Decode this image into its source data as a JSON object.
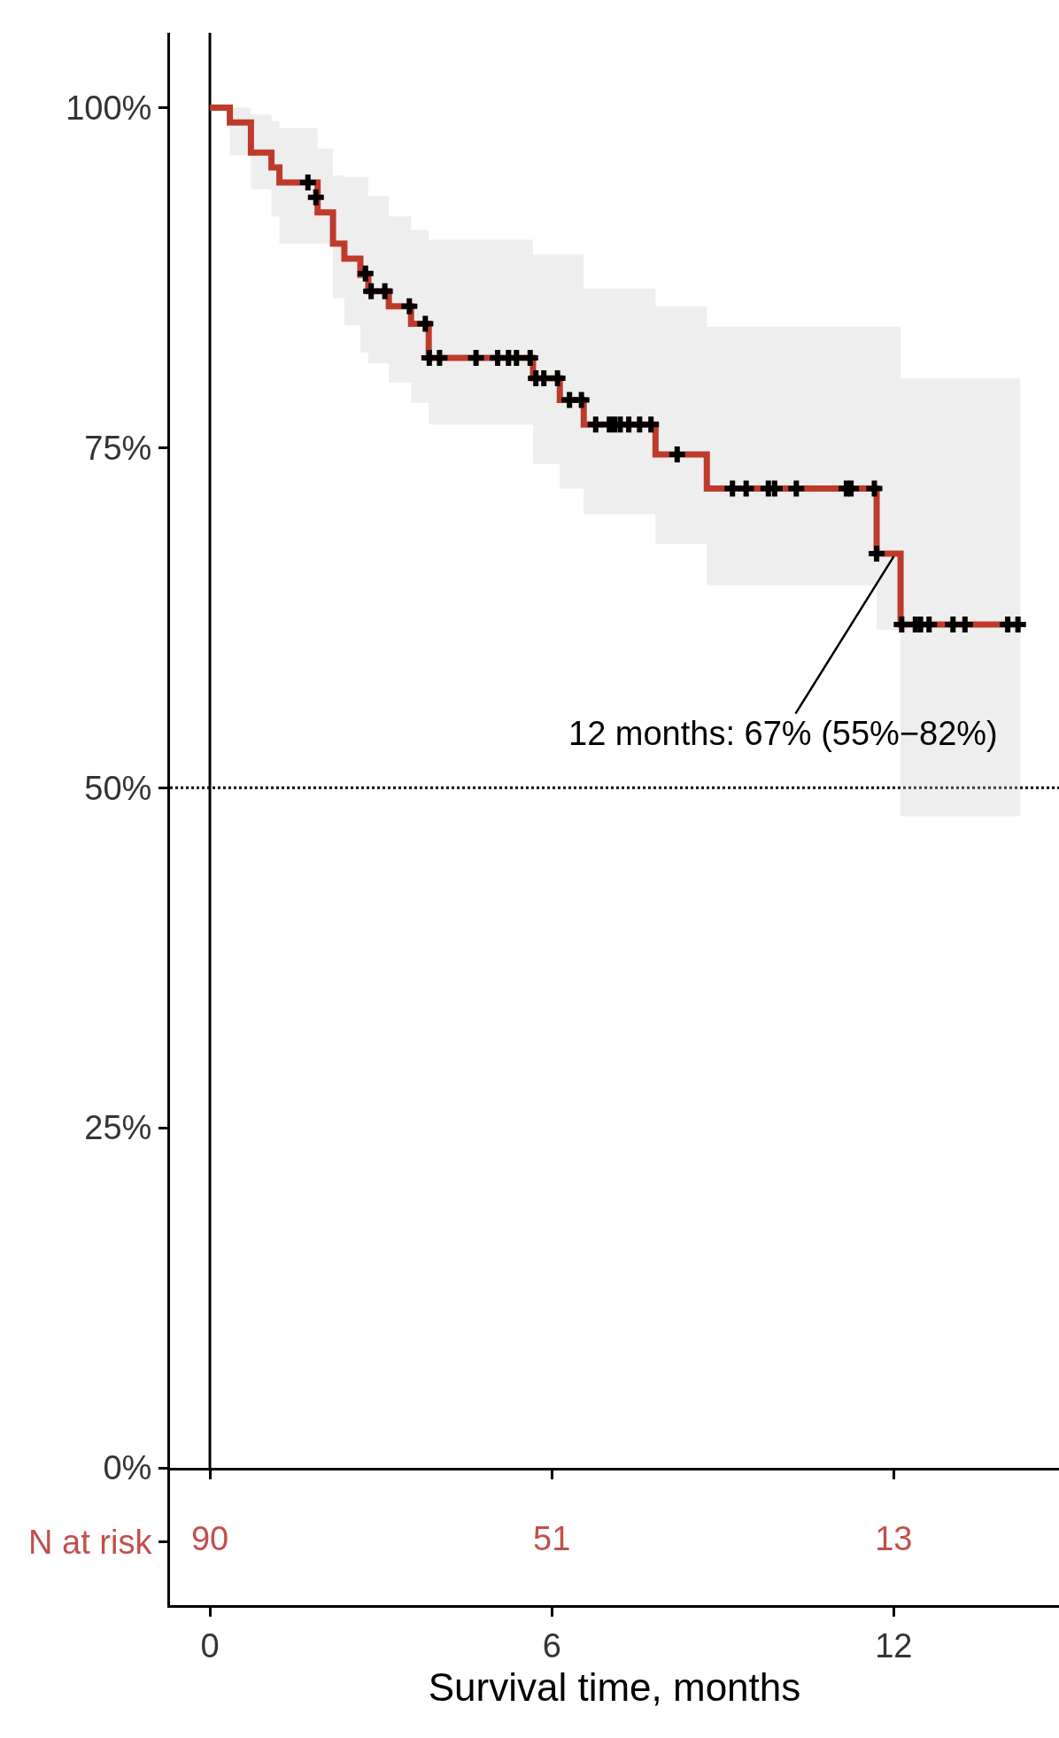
{
  "chart_data": [
    {
      "type": "step",
      "xlim": [
        -0.7,
        14.9
      ],
      "xticks": [
        0,
        6,
        12
      ],
      "ylim": [
        0,
        105.5
      ],
      "yticks": [
        {
          "value": 0,
          "label": "0%"
        },
        {
          "value": 25,
          "label": "25%"
        },
        {
          "value": 50,
          "label": "50%"
        },
        {
          "value": 75,
          "label": "75%"
        },
        {
          "value": 100,
          "label": "100%"
        }
      ],
      "tick_labels": "y",
      "series": [
        {
          "type": "step",
          "color": "#be3b2c",
          "x": [
            0,
            0.35,
            0.72,
            1.08,
            1.22,
            1.89,
            2.16,
            2.36,
            2.64,
            2.78,
            3.14,
            3.53,
            3.84,
            5.67,
            6.14,
            6.56,
            7.82,
            8.72,
            11.7,
            12.12,
            14.22
          ],
          "values": [
            100,
            98.9,
            96.7,
            95.6,
            94.5,
            92.3,
            90.0,
            88.9,
            87.7,
            86.5,
            85.4,
            84.1,
            81.6,
            80.1,
            78.5,
            76.7,
            74.5,
            72.0,
            67.2,
            62.0,
            62.0
          ],
          "lower": [
            100,
            96.5,
            94,
            92,
            90,
            90,
            86,
            84,
            82,
            81.2,
            79.8,
            78.3,
            76.7,
            73.8,
            72,
            70.1,
            67.9,
            64.9,
            61.6,
            47.9,
            47.9
          ],
          "upper": [
            100,
            100,
            99.5,
            99,
            98.5,
            97,
            95,
            94.9,
            94.9,
            93.5,
            92,
            91,
            90.3,
            89.2,
            89.2,
            86.7,
            85.4,
            83.9,
            83.9,
            80.1,
            80.1
          ]
        },
        {
          "type": "scatter",
          "color": "#000000",
          "marker": "cross",
          "x": [
            1.72,
            1.86,
            2.73,
            2.83,
            3.07,
            3.5,
            3.78,
            3.85,
            4.03,
            4.67,
            5.05,
            5.24,
            5.38,
            5.62,
            5.72,
            5.86,
            6.1,
            6.31,
            6.52,
            6.77,
            7.01,
            7.1,
            7.2,
            7.35,
            7.54,
            7.74,
            8.2,
            9.17,
            9.41,
            9.8,
            9.91,
            10.29,
            11.17,
            11.25,
            11.66,
            11.7,
            12.14,
            12.38,
            12.47,
            12.62,
            13.04,
            13.25,
            14.0,
            14.18
          ],
          "values": [
            94.5,
            93.4,
            87.8,
            86.5,
            86.5,
            85.4,
            84.1,
            81.6,
            81.6,
            81.6,
            81.6,
            81.6,
            81.6,
            81.6,
            80.1,
            80.1,
            80.1,
            78.5,
            78.5,
            76.7,
            76.7,
            76.7,
            76.7,
            76.7,
            76.7,
            76.7,
            74.5,
            72.0,
            72.0,
            72.0,
            72.0,
            72.0,
            72.0,
            72.0,
            72.0,
            67.2,
            62.0,
            62.0,
            62.0,
            62.0,
            62.0,
            62.0,
            62.0,
            62.0
          ]
        }
      ],
      "ref_lines": [
        {
          "axis": "y",
          "value": 50,
          "line_style": "dotted",
          "color": "#000000"
        },
        {
          "axis": "x",
          "value": 0,
          "line_style": "solid",
          "color": "#000000"
        }
      ],
      "annotations": [
        {
          "text": "12 months: 67% (55%−82%)",
          "x": 12,
          "y": 67
        }
      ]
    },
    {
      "type": "heatmap",
      "xlabel": "Survival time, months",
      "y_categories": [
        "N at risk"
      ],
      "color": "#c0504d",
      "xlim": [
        -0.7,
        14.9
      ],
      "xticks": [
        0,
        6,
        12
      ],
      "x": [
        0,
        6,
        12
      ],
      "cells": [
        [
          90,
          51,
          13
        ]
      ],
      "data_labels": true
    }
  ]
}
